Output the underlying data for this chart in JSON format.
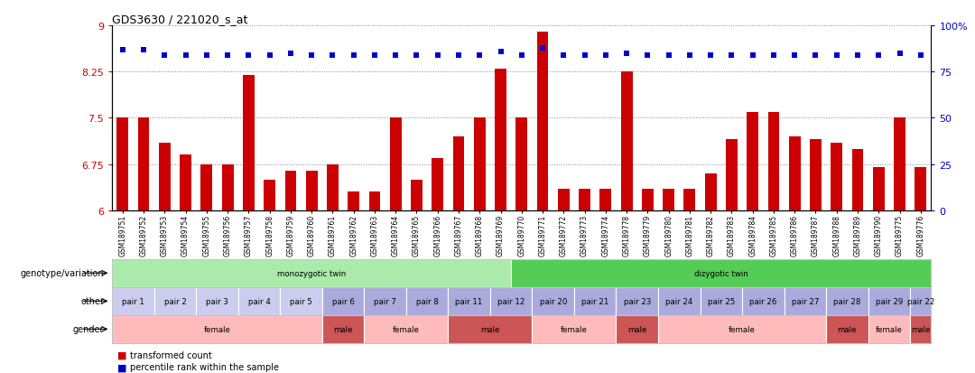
{
  "title": "GDS3630 / 221020_s_at",
  "samples": [
    "GSM189751",
    "GSM189752",
    "GSM189753",
    "GSM189754",
    "GSM189755",
    "GSM189756",
    "GSM189757",
    "GSM189758",
    "GSM189759",
    "GSM189760",
    "GSM189761",
    "GSM189762",
    "GSM189763",
    "GSM189764",
    "GSM189765",
    "GSM189766",
    "GSM189767",
    "GSM189768",
    "GSM189769",
    "GSM189770",
    "GSM189771",
    "GSM189772",
    "GSM189773",
    "GSM189774",
    "GSM189778",
    "GSM189779",
    "GSM189780",
    "GSM189781",
    "GSM189782",
    "GSM189783",
    "GSM189784",
    "GSM189785",
    "GSM189786",
    "GSM189787",
    "GSM189788",
    "GSM189789",
    "GSM189790",
    "GSM189775",
    "GSM189776"
  ],
  "bar_values": [
    7.5,
    7.5,
    7.1,
    6.9,
    6.75,
    6.75,
    8.2,
    6.5,
    6.65,
    6.65,
    6.75,
    6.3,
    6.3,
    7.5,
    6.5,
    6.85,
    7.2,
    7.5,
    8.3,
    7.5,
    8.9,
    6.35,
    6.35,
    6.35,
    8.25,
    6.35,
    6.35,
    6.35,
    6.6,
    7.15,
    7.6,
    7.6,
    7.2,
    7.15,
    7.1,
    7.0,
    6.7,
    7.5,
    6.7
  ],
  "percentile_values": [
    87,
    87,
    84,
    84,
    84,
    84,
    84,
    84,
    85,
    84,
    84,
    84,
    84,
    84,
    84,
    84,
    84,
    84,
    86,
    84,
    88,
    84,
    84,
    84,
    85,
    84,
    84,
    84,
    84,
    84,
    84,
    84,
    84,
    84,
    84,
    84,
    84,
    85,
    84
  ],
  "ylim_left": [
    6.0,
    9.0
  ],
  "ylim_right": [
    0,
    100
  ],
  "yticks_left": [
    6.0,
    6.75,
    7.5,
    8.25,
    9.0
  ],
  "ytick_labels_left": [
    "6",
    "6.75",
    "7.5",
    "8.25",
    "9"
  ],
  "yticks_right": [
    0,
    25,
    50,
    75,
    100
  ],
  "bar_color": "#cc0000",
  "dot_color": "#0000cc",
  "background_color": "#ffffff",
  "grid_color": "#888888",
  "genotype_segments": [
    {
      "text": "monozygotic twin",
      "start": 0,
      "end": 19,
      "color": "#aaeaaa"
    },
    {
      "text": "dizygotic twin",
      "start": 19,
      "end": 39,
      "color": "#55cc55"
    }
  ],
  "other_pairs": [
    {
      "text": "pair 1",
      "start": 0,
      "end": 2,
      "color": "#ccccee"
    },
    {
      "text": "pair 2",
      "start": 2,
      "end": 4,
      "color": "#ccccee"
    },
    {
      "text": "pair 3",
      "start": 4,
      "end": 6,
      "color": "#ccccee"
    },
    {
      "text": "pair 4",
      "start": 6,
      "end": 8,
      "color": "#ccccee"
    },
    {
      "text": "pair 5",
      "start": 8,
      "end": 10,
      "color": "#ccccee"
    },
    {
      "text": "pair 6",
      "start": 10,
      "end": 12,
      "color": "#aaaadd"
    },
    {
      "text": "pair 7",
      "start": 12,
      "end": 14,
      "color": "#aaaadd"
    },
    {
      "text": "pair 8",
      "start": 14,
      "end": 16,
      "color": "#aaaadd"
    },
    {
      "text": "pair 11",
      "start": 16,
      "end": 18,
      "color": "#aaaadd"
    },
    {
      "text": "pair 12",
      "start": 18,
      "end": 20,
      "color": "#aaaadd"
    },
    {
      "text": "pair 20",
      "start": 20,
      "end": 22,
      "color": "#aaaadd"
    },
    {
      "text": "pair 21",
      "start": 22,
      "end": 24,
      "color": "#aaaadd"
    },
    {
      "text": "pair 23",
      "start": 24,
      "end": 26,
      "color": "#aaaadd"
    },
    {
      "text": "pair 24",
      "start": 26,
      "end": 28,
      "color": "#aaaadd"
    },
    {
      "text": "pair 25",
      "start": 28,
      "end": 30,
      "color": "#aaaadd"
    },
    {
      "text": "pair 26",
      "start": 30,
      "end": 32,
      "color": "#aaaadd"
    },
    {
      "text": "pair 27",
      "start": 32,
      "end": 34,
      "color": "#aaaadd"
    },
    {
      "text": "pair 28",
      "start": 34,
      "end": 36,
      "color": "#aaaadd"
    },
    {
      "text": "pair 29",
      "start": 36,
      "end": 38,
      "color": "#aaaadd"
    },
    {
      "text": "pair 22",
      "start": 38,
      "end": 39,
      "color": "#aaaadd"
    }
  ],
  "gender_segments": [
    {
      "text": "female",
      "start": 0,
      "end": 10,
      "color": "#ffbbbb"
    },
    {
      "text": "male",
      "start": 10,
      "end": 12,
      "color": "#cc5555"
    },
    {
      "text": "female",
      "start": 12,
      "end": 16,
      "color": "#ffbbbb"
    },
    {
      "text": "male",
      "start": 16,
      "end": 20,
      "color": "#cc5555"
    },
    {
      "text": "female",
      "start": 20,
      "end": 24,
      "color": "#ffbbbb"
    },
    {
      "text": "male",
      "start": 24,
      "end": 26,
      "color": "#cc5555"
    },
    {
      "text": "female",
      "start": 26,
      "end": 34,
      "color": "#ffbbbb"
    },
    {
      "text": "male",
      "start": 34,
      "end": 36,
      "color": "#cc5555"
    },
    {
      "text": "female",
      "start": 36,
      "end": 38,
      "color": "#ffbbbb"
    },
    {
      "text": "male",
      "start": 38,
      "end": 39,
      "color": "#cc5555"
    }
  ]
}
